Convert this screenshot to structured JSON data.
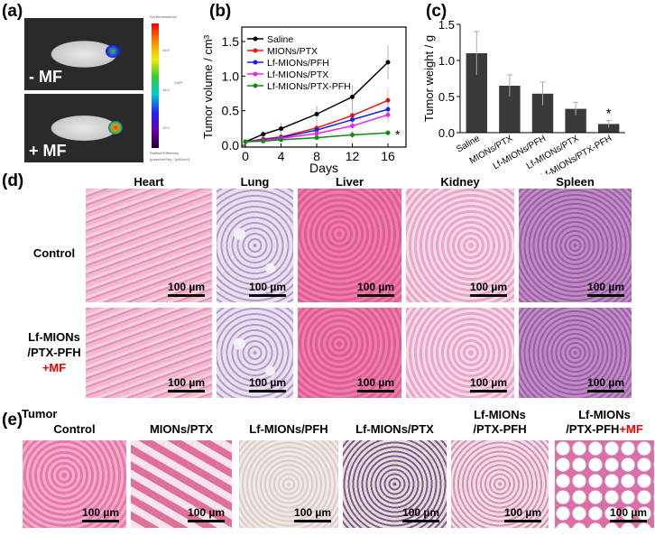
{
  "panel_a": {
    "label": "(a)",
    "top_label": "- MF",
    "bottom_label": "+ MF",
    "colorbar": {
      "title": "Epi-fluorescence",
      "ticks": [
        "16.0",
        "14.0",
        "12.0"
      ],
      "exponent": "x10⁸",
      "unit": "Radiant Efficiency",
      "unit2": "(p/sec/cm²/sr) / (µW/cm²)"
    }
  },
  "chart_data": [
    {
      "label": "(b)",
      "type": "line",
      "xlabel": "Days",
      "ylabel": "Tumor volume / cm³",
      "xlim": [
        -0.5,
        18
      ],
      "ylim": [
        0,
        1.6
      ],
      "xticks": [
        0,
        4,
        8,
        12,
        16
      ],
      "yticks": [
        "0.0",
        "0.5",
        "1.0",
        "1.5"
      ],
      "x": [
        0,
        2,
        4,
        8,
        12,
        16
      ],
      "legend": "top-left",
      "annotation": "*",
      "series": [
        {
          "name": "Saline",
          "color": "#000000",
          "marker": "square",
          "values": [
            0.05,
            0.16,
            0.24,
            0.45,
            0.7,
            1.2
          ],
          "err": [
            0.01,
            0.04,
            0.09,
            0.12,
            0.17,
            0.25
          ]
        },
        {
          "name": "MIONs/PTX",
          "color": "#ee1111",
          "marker": "circle",
          "values": [
            0.05,
            0.09,
            0.12,
            0.25,
            0.43,
            0.65
          ],
          "err": [
            0.01,
            0.03,
            0.04,
            0.08,
            0.12,
            0.18
          ]
        },
        {
          "name": "Lf-MIONs/PFH",
          "color": "#1122dd",
          "marker": "triangle-up",
          "values": [
            0.05,
            0.08,
            0.11,
            0.22,
            0.37,
            0.52
          ],
          "err": [
            0.01,
            0.03,
            0.04,
            0.07,
            0.1,
            0.14
          ]
        },
        {
          "name": "Lf-MIONs/PTX",
          "color": "#ee22ee",
          "marker": "triangle-down",
          "values": [
            0.05,
            0.07,
            0.1,
            0.17,
            0.28,
            0.44
          ],
          "err": [
            0.01,
            0.02,
            0.03,
            0.06,
            0.09,
            0.12
          ]
        },
        {
          "name": "Lf-MIONs/PTX-PFH",
          "color": "#118811",
          "marker": "diamond",
          "values": [
            0.05,
            0.06,
            0.08,
            0.11,
            0.15,
            0.18
          ],
          "err": [
            0.01,
            0.02,
            0.02,
            0.03,
            0.05,
            0.05
          ]
        }
      ]
    },
    {
      "label": "(c)",
      "type": "bar",
      "ylabel": "Tumor weight / g",
      "ylim": [
        0,
        1.5
      ],
      "yticks": [
        "0.0",
        "0.5",
        "1.0",
        "1.5"
      ],
      "categories": [
        "Saline",
        "MIONs/PTX",
        "Lf-MIONs/PFH",
        "Lf-MIONs/PTX",
        "Lf-MIONs/PTX-PFH"
      ],
      "values": [
        1.1,
        0.65,
        0.54,
        0.33,
        0.12
      ],
      "err": [
        0.3,
        0.15,
        0.16,
        0.09,
        0.05
      ],
      "bar_color": "#3a3a3a",
      "annotation": "*"
    }
  ],
  "panel_d": {
    "label": "(d)",
    "columns": [
      "Heart",
      "Lung",
      "Liver",
      "Kidney",
      "Spleen"
    ],
    "rows": [
      {
        "label": "Control"
      },
      {
        "label1": "Lf-MIONs",
        "label2": "/PTX-PFH",
        "label3": "+MF"
      }
    ],
    "scale_bar": "100 µm"
  },
  "panel_e": {
    "label": "(e)",
    "title": "Tumor",
    "columns": [
      {
        "l1": "",
        "l2": "Control"
      },
      {
        "l1": "",
        "l2": "MIONs/PTX"
      },
      {
        "l1": "",
        "l2": "Lf-MIONs/PFH"
      },
      {
        "l1": "",
        "l2": "Lf-MIONs/PTX"
      },
      {
        "l1": "Lf-MIONs",
        "l2": "/PTX-PFH"
      },
      {
        "l1": "Lf-MIONs",
        "l2": "/PTX-PFH",
        "l2red": "+MF"
      }
    ],
    "scale_bar": "100 µm"
  }
}
